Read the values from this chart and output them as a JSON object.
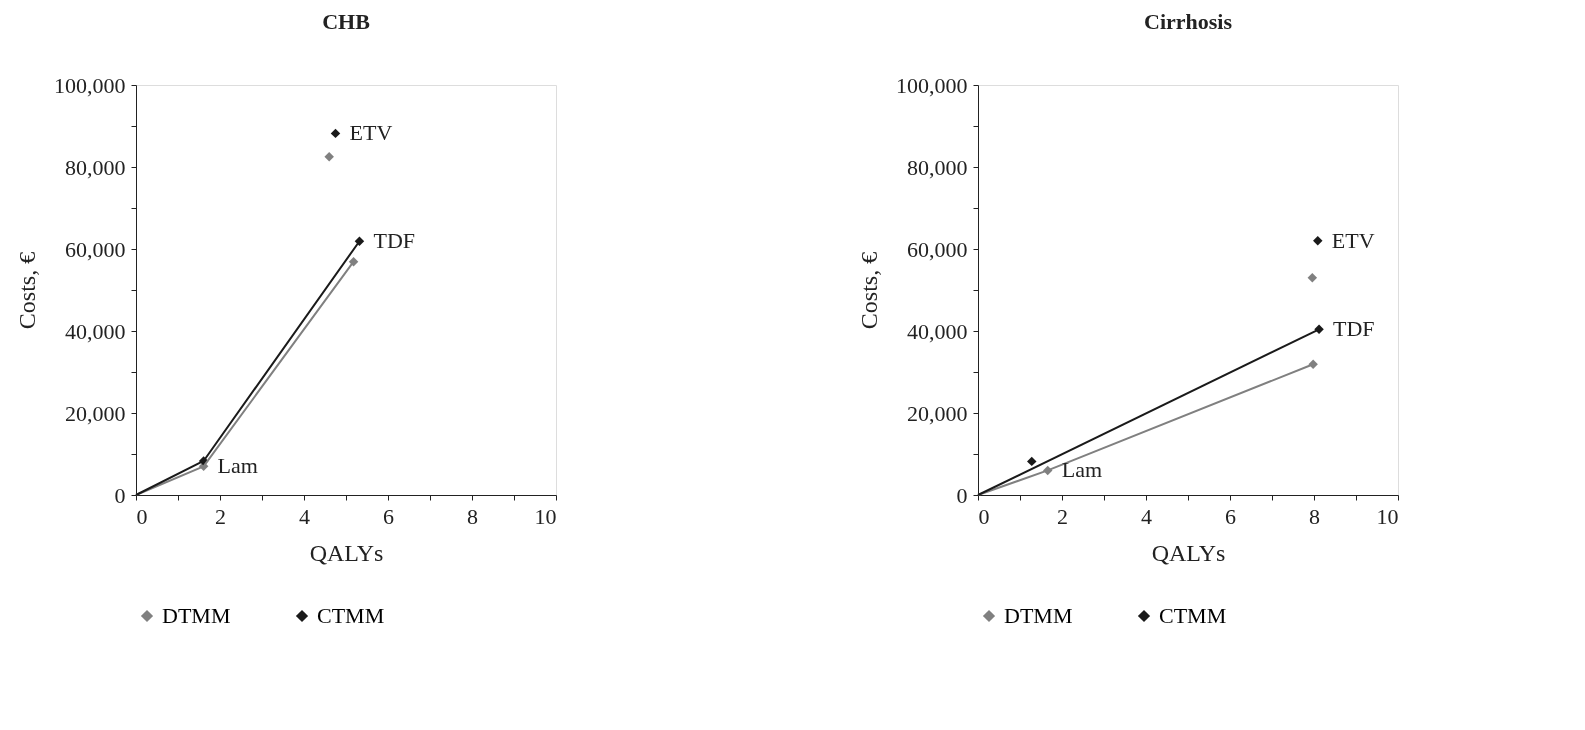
{
  "chart_data": [
    {
      "type": "scatter",
      "title": "CHB",
      "xlabel": "QALYs",
      "ylabel": "Costs, €",
      "xlim": [
        0,
        10
      ],
      "ylim": [
        0,
        100000
      ],
      "grid": false,
      "legend": "bottom",
      "marker": "diamond",
      "xticks": [
        0,
        {
          "value": 1,
          "label": null
        },
        2,
        {
          "value": 3,
          "label": null
        },
        4,
        {
          "value": 5,
          "label": null
        },
        6,
        {
          "value": 7,
          "label": null
        },
        8,
        {
          "value": 9,
          "label": null
        },
        10
      ],
      "yticks": [
        0,
        {
          "value": 10000,
          "label": null
        },
        {
          "value": 20000,
          "label": "20,000"
        },
        {
          "value": 30000,
          "label": null
        },
        {
          "value": 40000,
          "label": "40,000"
        },
        {
          "value": 50000,
          "label": null
        },
        {
          "value": 60000,
          "label": "60,000"
        },
        {
          "value": 70000,
          "label": null
        },
        {
          "value": 80000,
          "label": "80,000"
        },
        {
          "value": 90000,
          "label": null
        },
        {
          "value": 100000,
          "label": "100,000"
        }
      ],
      "series": [
        {
          "name": "DTMM",
          "type": "scatter",
          "color": "#808080",
          "x": [
            1.61,
            4.6,
            5.18
          ],
          "values": [
            7000,
            82500,
            56900
          ]
        },
        {
          "name": "CTMM",
          "type": "scatter",
          "color": "#1a1a1a",
          "x": [
            1.61,
            4.75,
            5.32
          ],
          "values": [
            8300,
            88200,
            61900
          ]
        },
        {
          "type": "line",
          "color": "#808080",
          "marker": "none",
          "x": [
            0,
            1.61,
            5.18
          ],
          "values": [
            0,
            7000,
            56900
          ]
        },
        {
          "type": "line",
          "color": "#1a1a1a",
          "marker": "none",
          "x": [
            0,
            1.61,
            5.32
          ],
          "values": [
            0,
            8300,
            61900
          ]
        }
      ],
      "annotations": [
        {
          "text": "ETV",
          "x": 4.75,
          "y": 88200
        },
        {
          "text": "TDF",
          "x": 5.32,
          "y": 61900
        },
        {
          "text": "Lam",
          "x": 1.61,
          "y": 7000
        }
      ]
    },
    {
      "type": "scatter",
      "title": "Cirrhosis",
      "xlabel": "QALYs",
      "ylabel": "Costs, €",
      "xlim": [
        0,
        10
      ],
      "ylim": [
        0,
        100000
      ],
      "grid": false,
      "legend": "bottom",
      "marker": "diamond",
      "xticks": [
        0,
        {
          "value": 1,
          "label": null
        },
        2,
        {
          "value": 3,
          "label": null
        },
        4,
        {
          "value": 5,
          "label": null
        },
        6,
        {
          "value": 7,
          "label": null
        },
        8,
        {
          "value": 9,
          "label": null
        },
        10
      ],
      "yticks": [
        0,
        {
          "value": 10000,
          "label": null
        },
        {
          "value": 20000,
          "label": "20,000"
        },
        {
          "value": 30000,
          "label": null
        },
        {
          "value": 40000,
          "label": "40,000"
        },
        {
          "value": 50000,
          "label": null
        },
        {
          "value": 60000,
          "label": "60,000"
        },
        {
          "value": 70000,
          "label": null
        },
        {
          "value": 80000,
          "label": "80,000"
        },
        {
          "value": 90000,
          "label": null
        },
        {
          "value": 100000,
          "label": "100,000"
        }
      ],
      "series": [
        {
          "name": "DTMM",
          "type": "scatter",
          "color": "#808080",
          "x": [
            1.66,
            7.96,
            7.98
          ],
          "values": [
            6000,
            53000,
            31900
          ]
        },
        {
          "name": "CTMM",
          "type": "scatter",
          "color": "#1a1a1a",
          "x": [
            1.28,
            8.09,
            8.12
          ],
          "values": [
            8200,
            62000,
            40400
          ]
        },
        {
          "type": "line",
          "color": "#808080",
          "marker": "none",
          "x": [
            0,
            1.66,
            7.98
          ],
          "values": [
            0,
            6000,
            31900
          ]
        },
        {
          "type": "line",
          "color": "#1a1a1a",
          "marker": "none",
          "x": [
            0,
            8.12
          ],
          "values": [
            0,
            40400
          ]
        }
      ],
      "annotations": [
        {
          "text": "ETV",
          "x": 8.09,
          "y": 62000
        },
        {
          "text": "TDF",
          "x": 8.12,
          "y": 40400
        },
        {
          "text": "Lam",
          "x": 1.66,
          "y": 6000
        }
      ]
    }
  ]
}
